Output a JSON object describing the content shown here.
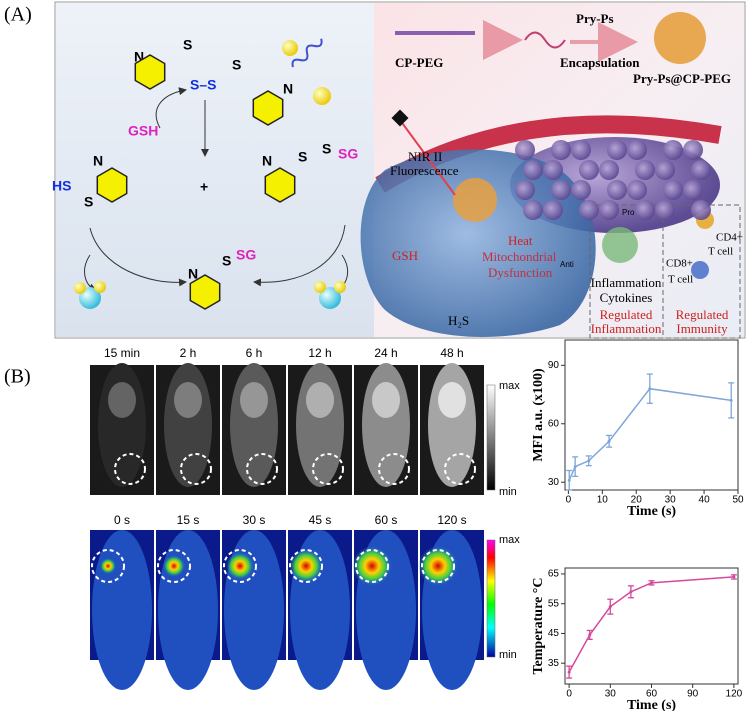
{
  "panel_a": {
    "label": "(A)",
    "chemistry": {
      "reactant_s1": "S",
      "reactant_ss": "S–S",
      "reactant_s2": "S",
      "n_top_left": "N",
      "n_top_right": "N",
      "gsh": "GSH",
      "plus": "+",
      "hs": "HS",
      "left_s": "S",
      "n_left": "N",
      "right_s1": "S",
      "right_s2": "S",
      "right_sg": "SG",
      "n_right": "N",
      "bottom_s": "S",
      "bottom_sg": "SG",
      "n_bottom": "N"
    },
    "schematic": {
      "cp_peg": "CP-PEG",
      "pry_ps": "Pry-Ps",
      "encapsulation": "Encapsulation",
      "product": "Pry-Ps@CP-PEG",
      "nir_line1": "NIR II",
      "nir_line2": "Fluorescence",
      "heat": "Heat",
      "gsh": "GSH",
      "mito_line1": "Mitochondrial",
      "mito_line2": "Dysfunction",
      "h2s": "H₂S",
      "anti": "Anti",
      "pro": "Pro",
      "cytokines_line1": "Inflammation",
      "cytokines_line2": "Cytokines",
      "reg_inflam_line1": "Regulated",
      "reg_inflam_line2": "Inflammation",
      "cd4": "CD4+",
      "cd4_cell": "T cell",
      "cd8": "CD8+",
      "cd8_cell": "T cell",
      "reg_immun_line1": "Regulated",
      "reg_immun_line2": "Immunity"
    }
  },
  "panel_b": {
    "label": "(B)",
    "nir_times": [
      "15 min",
      "2 h",
      "6 h",
      "12 h",
      "24 h",
      "48 h"
    ],
    "thermal_times": [
      "0 s",
      "15 s",
      "30 s",
      "45 s",
      "60 s",
      "120 s"
    ],
    "nir_colorbar": {
      "max": "max",
      "min": "min"
    },
    "thermal_colorbar": {
      "max": "max",
      "min": "min"
    }
  },
  "chart_data": [
    {
      "type": "line",
      "x_label": "Time (s)",
      "y_label": "MFI a.u. (x100)",
      "x": [
        0.25,
        2,
        6,
        12,
        24,
        48
      ],
      "series": [
        {
          "color": "#7ea6d8",
          "values": [
            31,
            38,
            41,
            51,
            78,
            72
          ],
          "errors": [
            5,
            5,
            2.5,
            3,
            7.5,
            9
          ]
        }
      ],
      "xlim": [
        -1,
        50
      ],
      "xticks": [
        0,
        10,
        20,
        30,
        40,
        50
      ],
      "ylim": [
        26,
        103
      ],
      "yticks": [
        30,
        60,
        90
      ]
    },
    {
      "type": "line",
      "x_label": "Time (s)",
      "y_label": "Temperature °C",
      "x": [
        0,
        15,
        30,
        45,
        60,
        120
      ],
      "series": [
        {
          "color": "#d6489a",
          "values": [
            32,
            44.5,
            54,
            59,
            62,
            64
          ],
          "errors": [
            2,
            1.5,
            2.5,
            2,
            0.7,
            0.7
          ]
        }
      ],
      "xlim": [
        -3,
        123
      ],
      "xticks": [
        0,
        30,
        60,
        90,
        120
      ],
      "ylim": [
        28,
        67
      ],
      "yticks": [
        35,
        45,
        55,
        65
      ]
    }
  ]
}
